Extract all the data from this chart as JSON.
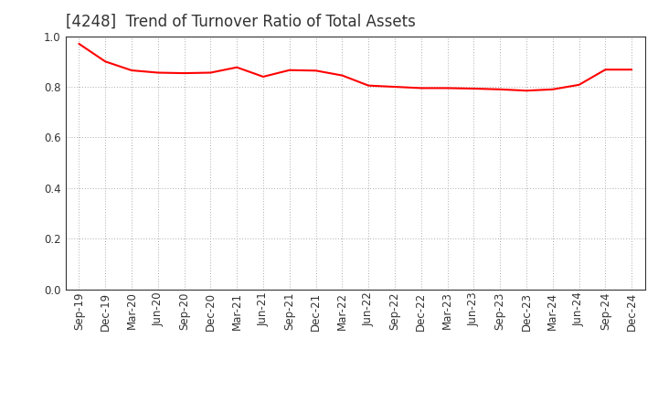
{
  "title": "[4248]  Trend of Turnover Ratio of Total Assets",
  "labels": [
    "Sep-19",
    "Dec-19",
    "Mar-20",
    "Jun-20",
    "Sep-20",
    "Dec-20",
    "Mar-21",
    "Jun-21",
    "Sep-21",
    "Dec-21",
    "Mar-22",
    "Jun-22",
    "Sep-22",
    "Dec-22",
    "Mar-23",
    "Jun-23",
    "Sep-23",
    "Dec-23",
    "Mar-24",
    "Jun-24",
    "Sep-24",
    "Dec-24"
  ],
  "values": [
    0.97,
    0.9,
    0.865,
    0.856,
    0.854,
    0.856,
    0.877,
    0.84,
    0.866,
    0.864,
    0.845,
    0.805,
    0.8,
    0.795,
    0.795,
    0.793,
    0.79,
    0.785,
    0.79,
    0.808,
    0.868,
    0.868
  ],
  "line_color": "#FF0000",
  "line_width": 1.5,
  "ylim": [
    0.0,
    1.0
  ],
  "yticks": [
    0.0,
    0.2,
    0.4,
    0.6,
    0.8,
    1.0
  ],
  "grid_color": "#aaaaaa",
  "background_color": "#ffffff",
  "title_fontsize": 12,
  "tick_fontsize": 8.5,
  "title_color": "#333333"
}
